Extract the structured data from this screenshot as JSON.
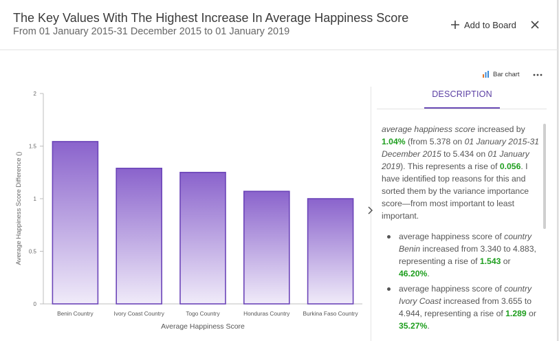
{
  "header": {
    "title": "The Key Values With The Highest Increase In Average Happiness Score",
    "subtitle": "From 01 January 2015-31 December 2015 to 01 January 2019",
    "add_to_board_label": "Add to Board",
    "add_icon": "plus-icon",
    "close_icon": "close-icon"
  },
  "toolbar": {
    "chart_type_label": "Bar chart",
    "chart_type_icon": "bar-chart-icon",
    "more_icon": "more-horizontal-icon"
  },
  "tabs": {
    "description_label": "DESCRIPTION"
  },
  "description": {
    "intro": {
      "metric": "average happiness score",
      "t1": " increased by ",
      "pct": "1.04%",
      "t2": " (from 5.378 on ",
      "period1": "01 January 2015-31 December 2015",
      "t3": " to 5.434 on ",
      "period2": "01 January 2019",
      "t4": "). This represents a rise of ",
      "rise": "0.056",
      "t5": ". I have identified top reasons for this and sorted them by the variance importance score—from most important to least important."
    },
    "items": [
      {
        "prefix": "average happiness score of ",
        "key": "country Benin",
        "mid": " increased from 3.340 to 4.883, representing a rise of ",
        "value": "1.543",
        "or": " or ",
        "pct": "46.20%",
        "end": "."
      },
      {
        "prefix": "average happiness score of ",
        "key": "country Ivory Coast",
        "mid": " increased from 3.655 to 4.944, representing a rise of ",
        "value": "1.289",
        "or": " or ",
        "pct": "35.27%",
        "end": "."
      }
    ]
  },
  "colors": {
    "bar_top": "#8a63cc",
    "bar_bottom": "#f0ebf9",
    "bar_stroke": "#6b44b8",
    "accent": "#5b3fa3",
    "positive": "#1e9e1e"
  },
  "chart_data": {
    "type": "bar",
    "categories": [
      "Benin Country",
      "Ivory Coast Country",
      "Togo Country",
      "Honduras Country",
      "Burkina Faso Country"
    ],
    "values": [
      1.543,
      1.289,
      1.25,
      1.07,
      1.0
    ],
    "xlabel": "Average Happiness Score",
    "ylabel": "Average Happiness Score Difference ()",
    "ylim": [
      0,
      2
    ],
    "yticks": [
      "0",
      "0.5",
      "1",
      "1.5",
      "2"
    ],
    "grid": false,
    "legend": "none"
  }
}
